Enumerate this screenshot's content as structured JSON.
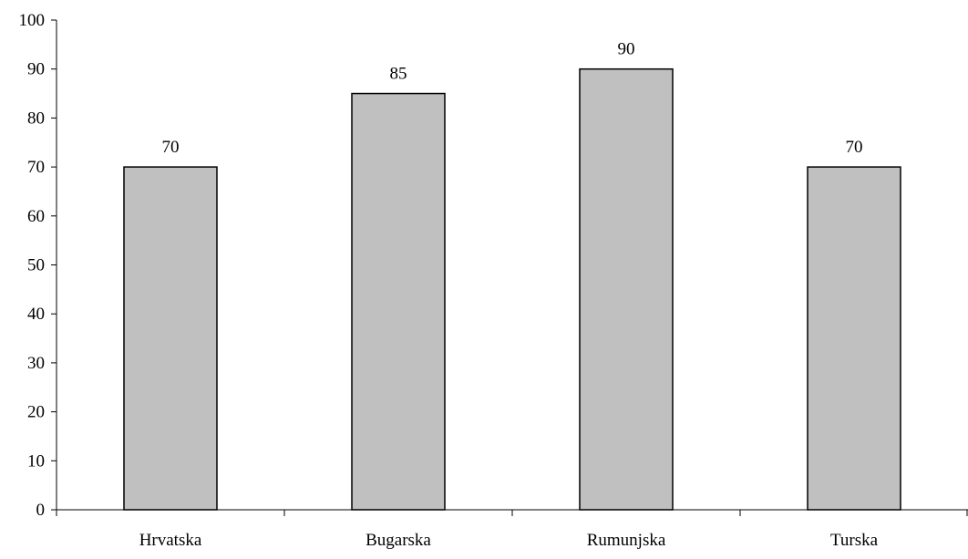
{
  "chart_data": {
    "type": "bar",
    "categories": [
      "Hrvatska",
      "Bugarska",
      "Rumunjska",
      "Turska"
    ],
    "values": [
      70,
      85,
      90,
      70
    ],
    "data_labels": [
      "70",
      "85",
      "90",
      "70"
    ],
    "ylim": [
      0,
      100
    ],
    "yticks": [
      0,
      10,
      20,
      30,
      40,
      50,
      60,
      70,
      80,
      90,
      100
    ],
    "ytick_labels": [
      "0",
      "10",
      "20",
      "30",
      "40",
      "50",
      "60",
      "70",
      "80",
      "90",
      "100"
    ],
    "grid": false,
    "legend": "none",
    "title": "",
    "xlabel": "",
    "ylabel": "",
    "bar_color": "#C0C0C0",
    "bar_edge_color": "#000000",
    "axis_color": "#000000"
  }
}
